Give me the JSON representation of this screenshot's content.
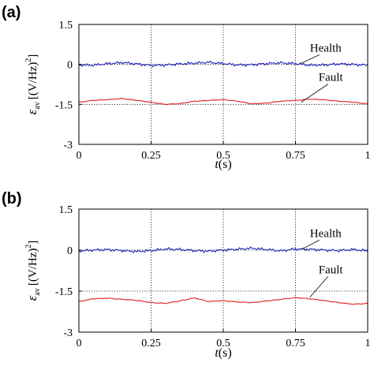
{
  "chart_data": [
    {
      "type": "line",
      "panel_label": "(a)",
      "xlabel_var": "t",
      "xlabel_unit": "(s)",
      "ylabel_sym": "ε",
      "ylabel_sub": "av",
      "ylabel_unit": "(V/Hz)",
      "ylabel_exp": "2",
      "xlim": [
        0,
        1
      ],
      "ylim": [
        -3,
        1.5
      ],
      "x_ticks": [
        0,
        0.25,
        0.5,
        0.75,
        1
      ],
      "x_tick_labels": [
        "0",
        "0.25",
        "0.5",
        "0.75",
        "1"
      ],
      "y_ticks": [
        1.5,
        0,
        -1.5,
        -3
      ],
      "y_tick_labels": [
        "1.5",
        "0",
        "-1.5",
        "-3"
      ],
      "vgrid_x": [
        0.25,
        0.5,
        0.75
      ],
      "hrefs": [
        0,
        -1.5
      ],
      "annotations": [
        {
          "text": "Health",
          "x": 0.8,
          "y": 0.48,
          "arrow_to": [
            0.765,
            0.02
          ]
        },
        {
          "text": "Fault",
          "x": 0.83,
          "y": -0.62,
          "arrow_to": [
            0.77,
            -1.42
          ]
        }
      ],
      "series": [
        {
          "color": "#1f1fbf",
          "x": [
            0,
            0.05,
            0.1,
            0.15,
            0.2,
            0.25,
            0.3,
            0.35,
            0.4,
            0.45,
            0.5,
            0.55,
            0.6,
            0.65,
            0.7,
            0.75,
            0.8,
            0.85,
            0.9,
            0.95,
            1.0
          ],
          "y": [
            -0.02,
            -0.03,
            0.03,
            0.07,
            0.02,
            -0.04,
            -0.02,
            0.02,
            0.05,
            0.08,
            0.03,
            -0.02,
            -0.01,
            0.03,
            0.06,
            0.03,
            -0.03,
            -0.02,
            0.02,
            0.0,
            -0.03
          ]
        },
        {
          "color": "#e02020",
          "x": [
            0,
            0.05,
            0.1,
            0.15,
            0.2,
            0.25,
            0.3,
            0.35,
            0.4,
            0.45,
            0.5,
            0.55,
            0.6,
            0.65,
            0.7,
            0.75,
            0.8,
            0.85,
            0.9,
            0.95,
            1.0
          ],
          "y": [
            -1.42,
            -1.35,
            -1.32,
            -1.28,
            -1.35,
            -1.42,
            -1.5,
            -1.47,
            -1.38,
            -1.35,
            -1.32,
            -1.38,
            -1.48,
            -1.45,
            -1.38,
            -1.35,
            -1.3,
            -1.33,
            -1.38,
            -1.42,
            -1.48
          ]
        }
      ]
    },
    {
      "type": "line",
      "panel_label": "(b)",
      "xlabel_var": "t",
      "xlabel_unit": "(s)",
      "ylabel_sym": "ε",
      "ylabel_sub": "av",
      "ylabel_unit": "(V/Hz)",
      "ylabel_exp": "2",
      "xlim": [
        0,
        1
      ],
      "ylim": [
        -3,
        1.5
      ],
      "x_ticks": [
        0,
        0.25,
        0.5,
        0.75,
        1
      ],
      "x_tick_labels": [
        "0",
        "0.25",
        "0.5",
        "0.75",
        "1"
      ],
      "y_ticks": [
        1.5,
        0,
        -1.5,
        -3
      ],
      "y_tick_labels": [
        "1.5",
        "0",
        "-1.5",
        "-3"
      ],
      "vgrid_x": [
        0.25,
        0.5,
        0.75
      ],
      "hrefs": [
        0,
        -1.5
      ],
      "annotations": [
        {
          "text": "Health",
          "x": 0.8,
          "y": 0.48,
          "arrow_to": [
            0.77,
            0.02
          ]
        },
        {
          "text": "Fault",
          "x": 0.83,
          "y": -0.85,
          "arrow_to": [
            0.8,
            -1.72
          ]
        }
      ],
      "series": [
        {
          "color": "#1f1fbf",
          "x": [
            0,
            0.05,
            0.1,
            0.15,
            0.2,
            0.25,
            0.3,
            0.35,
            0.4,
            0.45,
            0.5,
            0.55,
            0.6,
            0.65,
            0.7,
            0.75,
            0.8,
            0.85,
            0.9,
            0.95,
            1.0
          ],
          "y": [
            -0.03,
            0.0,
            0.02,
            -0.02,
            -0.05,
            -0.02,
            0.04,
            0.02,
            -0.02,
            -0.04,
            0.0,
            0.03,
            0.07,
            0.02,
            -0.03,
            0.04,
            0.03,
            0.0,
            -0.02,
            0.02,
            -0.03
          ]
        },
        {
          "color": "#e02020",
          "x": [
            0,
            0.05,
            0.1,
            0.15,
            0.2,
            0.25,
            0.3,
            0.35,
            0.4,
            0.45,
            0.5,
            0.55,
            0.6,
            0.65,
            0.7,
            0.75,
            0.8,
            0.85,
            0.9,
            0.95,
            1.0
          ],
          "y": [
            -1.88,
            -1.78,
            -1.76,
            -1.8,
            -1.84,
            -1.92,
            -1.95,
            -1.86,
            -1.75,
            -1.88,
            -1.85,
            -1.9,
            -1.92,
            -1.86,
            -1.8,
            -1.74,
            -1.78,
            -1.85,
            -1.92,
            -1.98,
            -1.95
          ]
        }
      ]
    }
  ]
}
